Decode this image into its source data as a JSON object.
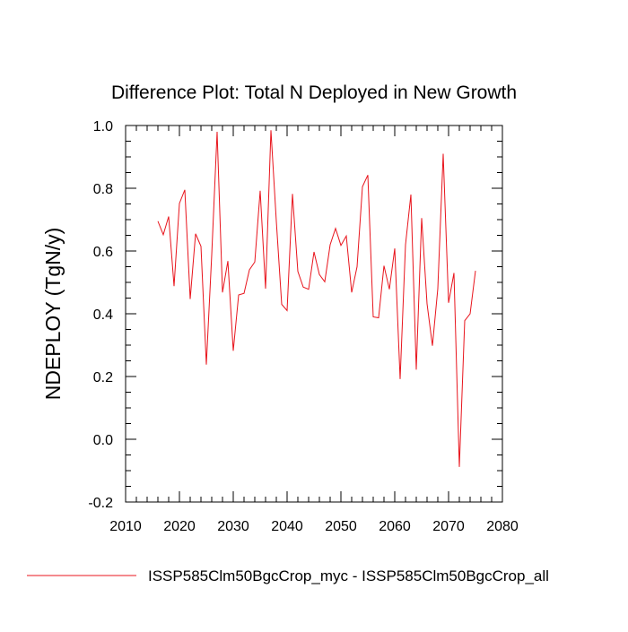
{
  "chart_data": {
    "type": "line",
    "title": "Difference Plot: Total N Deployed in New Growth",
    "xlabel": "",
    "ylabel": "NDEPLOY  (TgN/y)",
    "xlim": [
      2010,
      2080
    ],
    "ylim": [
      -0.2,
      1.0
    ],
    "x_ticks": [
      "2010",
      "2020",
      "2030",
      "2040",
      "2050",
      "2060",
      "2070",
      "2080"
    ],
    "y_ticks": [
      "-0.2",
      "0.0",
      "0.2",
      "0.4",
      "0.6",
      "0.8",
      "1.0"
    ],
    "grid": false,
    "legend_position": "bottom",
    "series": [
      {
        "name": "ISSP585Clm50BgcCrop_myc - ISSP585Clm50BgcCrop_all",
        "color": "#e8141c",
        "x": [
          2016,
          2017,
          2018,
          2019,
          2020,
          2021,
          2022,
          2023,
          2024,
          2025,
          2026,
          2027,
          2028,
          2029,
          2030,
          2031,
          2032,
          2033,
          2034,
          2035,
          2036,
          2037,
          2038,
          2039,
          2040,
          2041,
          2042,
          2043,
          2044,
          2045,
          2046,
          2047,
          2048,
          2049,
          2050,
          2051,
          2052,
          2053,
          2054,
          2055,
          2056,
          2057,
          2058,
          2059,
          2060,
          2061,
          2062,
          2063,
          2064,
          2065,
          2066,
          2067,
          2068,
          2069,
          2070,
          2071,
          2072,
          2073,
          2074,
          2075
        ],
        "y": [
          0.695,
          0.652,
          0.71,
          0.488,
          0.752,
          0.795,
          0.447,
          0.655,
          0.615,
          0.238,
          0.588,
          0.98,
          0.468,
          0.568,
          0.282,
          0.46,
          0.465,
          0.54,
          0.565,
          0.792,
          0.48,
          0.985,
          0.695,
          0.43,
          0.41,
          0.782,
          0.535,
          0.485,
          0.478,
          0.597,
          0.525,
          0.502,
          0.62,
          0.672,
          0.618,
          0.648,
          0.468,
          0.55,
          0.805,
          0.842,
          0.39,
          0.387,
          0.553,
          0.478,
          0.608,
          0.192,
          0.62,
          0.78,
          0.222,
          0.705,
          0.432,
          0.298,
          0.48,
          0.91,
          0.435,
          0.53,
          -0.088,
          0.378,
          0.4,
          0.537
        ]
      }
    ]
  }
}
